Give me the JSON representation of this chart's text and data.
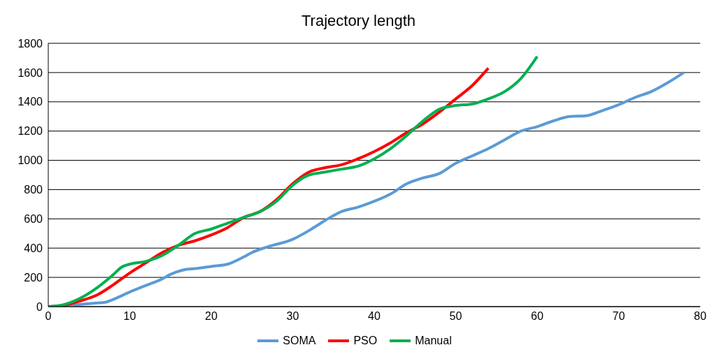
{
  "chart_data": {
    "type": "line",
    "title": "Trajectory length",
    "xlim": [
      0,
      80
    ],
    "xticks": [
      0,
      10,
      20,
      30,
      40,
      50,
      60,
      70,
      80
    ],
    "ylim": [
      0,
      1800
    ],
    "yticks": [
      0,
      200,
      400,
      600,
      800,
      1000,
      1200,
      1400,
      1600,
      1800
    ],
    "grid": "y",
    "legend": "bottom",
    "marker": "none",
    "line_style": "solid",
    "series": [
      {
        "name": "SOMA",
        "color": "#5b9bd5",
        "x": [
          0,
          2,
          4,
          6,
          7,
          8,
          10,
          12,
          14,
          15,
          17,
          18,
          20,
          22,
          24,
          25,
          27,
          30,
          32,
          34,
          36,
          38,
          40,
          42,
          44,
          46,
          48,
          50,
          52,
          54,
          56,
          58,
          60,
          62,
          64,
          66,
          68,
          70,
          72,
          74,
          76,
          78
        ],
        "values": [
          0,
          5,
          15,
          25,
          30,
          50,
          100,
          145,
          190,
          220,
          255,
          260,
          275,
          290,
          340,
          370,
          410,
          460,
          520,
          590,
          650,
          680,
          720,
          770,
          840,
          880,
          910,
          980,
          1030,
          1080,
          1140,
          1200,
          1230,
          1270,
          1300,
          1305,
          1340,
          1380,
          1430,
          1470,
          1530,
          1600
        ]
      },
      {
        "name": "PSO",
        "color": "#ff0000",
        "x": [
          0,
          2,
          4,
          6,
          8,
          10,
          12,
          14,
          16,
          18,
          20,
          22,
          24,
          26,
          28,
          30,
          32,
          34,
          36,
          38,
          40,
          42,
          44,
          46,
          48,
          50,
          52,
          54
        ],
        "values": [
          0,
          10,
          40,
          80,
          150,
          230,
          300,
          370,
          420,
          450,
          490,
          540,
          610,
          650,
          730,
          840,
          920,
          950,
          970,
          1010,
          1060,
          1120,
          1190,
          1250,
          1330,
          1420,
          1510,
          1630
        ]
      },
      {
        "name": "Manual",
        "color": "#00b050",
        "x": [
          0,
          2,
          4,
          6,
          8,
          9,
          10,
          12,
          14,
          16,
          18,
          20,
          22,
          24,
          26,
          28,
          30,
          32,
          34,
          36,
          38,
          40,
          42,
          44,
          46,
          48,
          50,
          52,
          54,
          56,
          58,
          60
        ],
        "values": [
          0,
          15,
          60,
          130,
          220,
          270,
          290,
          310,
          350,
          420,
          500,
          530,
          570,
          610,
          650,
          720,
          830,
          900,
          920,
          940,
          960,
          1010,
          1080,
          1170,
          1270,
          1350,
          1375,
          1385,
          1420,
          1470,
          1560,
          1710
        ]
      }
    ]
  }
}
